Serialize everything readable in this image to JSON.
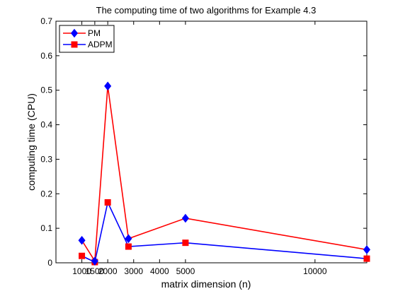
{
  "chart_data": {
    "type": "line",
    "title": "The computing time of two algorithms for Example 4.3",
    "xlabel": "matrix dimension (n)",
    "ylabel": "computing time (CPU)",
    "x": [
      1000,
      1500,
      2000,
      2800,
      5000,
      12000
    ],
    "xticks": [
      {
        "value": 1000,
        "label": "1000"
      },
      {
        "value": 1500,
        "label": "1500"
      },
      {
        "value": 2000,
        "label": "2000"
      },
      {
        "value": 3000,
        "label": "3000"
      },
      {
        "value": 4000,
        "label": "4000"
      },
      {
        "value": 5000,
        "label": "5000"
      },
      {
        "value": 10000,
        "label": "10000"
      }
    ],
    "yticks": [
      0,
      0.1,
      0.2,
      0.3,
      0.4,
      0.5,
      0.6,
      0.7
    ],
    "xlim": [
      0,
      12000
    ],
    "ylim": [
      0,
      0.7
    ],
    "grid": false,
    "legend_position": "top-left",
    "series": [
      {
        "name": "PM",
        "color": "#ff0000",
        "marker": "diamond",
        "marker_color": "#0000ff",
        "values": [
          0.065,
          0.005,
          0.512,
          0.07,
          0.129,
          0.038
        ]
      },
      {
        "name": "ADPM",
        "color": "#0000ff",
        "marker": "square",
        "marker_color": "#ff0000",
        "values": [
          0.02,
          0.002,
          0.175,
          0.047,
          0.058,
          0.012
        ]
      }
    ]
  }
}
